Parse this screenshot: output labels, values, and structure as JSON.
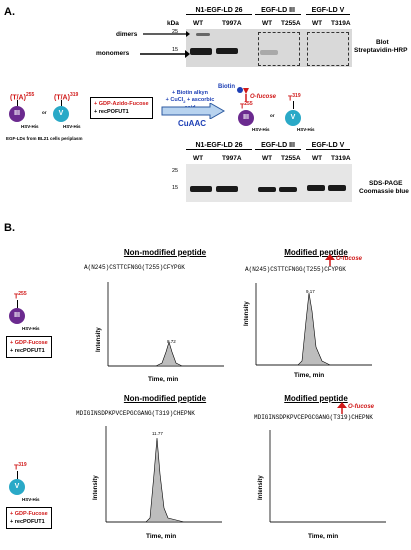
{
  "panel_a": {
    "label": "A.",
    "blot": {
      "headers": [
        "N1-EGF-LD 26",
        "EGF-LD III",
        "EGF-LD V"
      ],
      "lanes": [
        "WT",
        "T997A",
        "WT",
        "T255A",
        "WT",
        "T319A"
      ],
      "kda_label": "kDa",
      "markers": [
        "25",
        "15"
      ],
      "dimers_label": "dimers",
      "monomers_label": "monomers",
      "caption_line1": "Blot",
      "caption_line2": "Streptavidin-HRP"
    },
    "sds": {
      "headers": [
        "N1-EGF-LD 26",
        "EGF-LD III",
        "EGF-LD V"
      ],
      "lanes": [
        "WT",
        "T997A",
        "WT",
        "T255A",
        "WT",
        "T319A"
      ],
      "markers": [
        "25",
        "15"
      ],
      "caption_line1": "SDS-PAGE",
      "caption_line2": "Coomassie blue"
    },
    "scheme": {
      "site_left": "(T/A)",
      "site_left_sup": "255",
      "site_right": "(T/A)",
      "site_right_sup": "319",
      "domain_iii": "III",
      "domain_v": "V",
      "tag": "HSV-His",
      "or": "or",
      "source": "EGF-LDs from BL21 cells periplasm",
      "reagent1": "+ GDP-Azido-Fucose",
      "reagent2": "+ recPOFUT1",
      "click1": "+ Biotin alkyn",
      "click2": "+ CuCl",
      "click2_sub": "2",
      "click3": "+ ascorbic acid",
      "cuaac": "CuAAC",
      "biotin": "Biotin",
      "ofucose": "O-fucose",
      "t255": "T",
      "t255_sup": "255",
      "t319": "T",
      "t319_sup": "319"
    }
  },
  "panel_b": {
    "label": "B.",
    "row1": {
      "site": "T",
      "site_sup": "255",
      "domain": "III",
      "tag": "HSV-His",
      "reagent1": "+ GDP-Fucose",
      "reagent2": "+ recPOFUT1",
      "left": {
        "title": "Non-modified peptide",
        "sequence": "A(N245)CSTTCFNGG(T255)CFYPGK",
        "peak_label": "8.72",
        "ylabel": "Intensity",
        "xlabel": "Time, min"
      },
      "right": {
        "title": "Modified peptide",
        "ofucose": "O-fucose",
        "sequence": "A(N245)CSTTCFNGG(T255)CFYPGK",
        "peak_label": "9.17",
        "ylabel": "Intensity",
        "xlabel": "Time, min"
      }
    },
    "row2": {
      "site": "T",
      "site_sup": "319",
      "domain": "V",
      "tag": "HSV-His",
      "reagent1": "+ GDP-Fucose",
      "reagent2": "+ recPOFUT1",
      "left": {
        "title": "Non-modified peptide",
        "sequence": "MDIGINSDPKPVCEPGCGANG(T319)CHEPNK",
        "peak_label": "11.77",
        "ylabel": "Intensity",
        "xlabel": "Time, min"
      },
      "right": {
        "title": "Modified peptide",
        "ofucose": "O-fucose",
        "sequence": "MDIGINSDPKPVCEPGCGANG(T319)CHEPNK",
        "ylabel": "Intensity",
        "xlabel": "Time, min"
      }
    }
  },
  "colors": {
    "red": "#d01818",
    "purple": "#6b2a8f",
    "cyan": "#2aa9c7",
    "blue": "#1d3fb5",
    "peak_fill": "#bdbdbd"
  }
}
